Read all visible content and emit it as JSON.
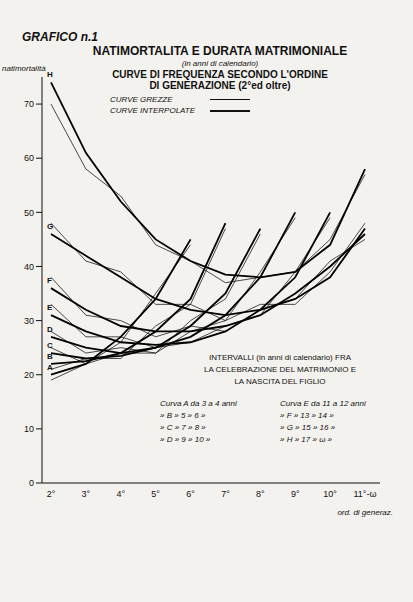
{
  "chart_data": {
    "type": "line",
    "header": "GRAFICO n.1",
    "title": "NATIMORTALITA E DURATA MATRIMONIALE",
    "subtitle": "(in anni di calendario)",
    "subtitle2": [
      "CURVE DI FREQUENZA SECONDO L'ORDINE",
      "DI GENERAZIONE (2°ed oltre)"
    ],
    "legend_labels": {
      "raw": "CURVE GREZZE",
      "interpolated": "CURVE INTERPOLATE"
    },
    "y_label": "natimortalità",
    "x_label": "ord. di generaz.",
    "categories": [
      "2°",
      "3°",
      "4°",
      "5°",
      "6°",
      "7°",
      "8°",
      "9°",
      "10°",
      "11°-ω"
    ],
    "ylim": [
      0,
      75
    ],
    "yticks": [
      0,
      10,
      20,
      30,
      40,
      50,
      60,
      70
    ],
    "grid": false,
    "series": [
      {
        "name": "A",
        "color": "#000000",
        "raw": [
          19,
          22,
          26,
          35,
          44,
          null,
          null,
          null,
          null,
          null
        ],
        "interpolated": [
          20,
          22,
          27,
          34,
          45,
          null,
          null,
          null,
          null,
          null
        ]
      },
      {
        "name": "B",
        "color": "#000000",
        "raw": [
          21,
          23,
          23,
          29,
          33,
          47,
          null,
          null,
          null,
          null
        ],
        "interpolated": [
          22,
          22.5,
          24,
          28,
          34,
          48,
          null,
          null,
          null,
          null
        ]
      },
      {
        "name": "C",
        "color": "#000000",
        "raw": [
          25,
          22,
          24,
          24,
          30,
          34,
          46,
          null,
          null,
          null
        ],
        "interpolated": [
          24,
          23,
          23.5,
          25,
          29,
          35,
          47,
          null,
          null,
          null
        ]
      },
      {
        "name": "D",
        "color": "#000000",
        "raw": [
          28,
          24,
          25,
          24,
          28,
          30,
          39,
          49,
          null,
          null
        ],
        "interpolated": [
          27,
          25,
          24,
          25,
          27,
          31,
          38,
          50,
          null,
          null
        ]
      },
      {
        "name": "E",
        "color": "#000000",
        "raw": [
          33,
          27,
          27,
          25,
          26,
          29,
          31,
          39,
          49,
          null
        ],
        "interpolated": [
          31,
          28,
          26,
          25.5,
          26,
          28,
          32,
          38,
          50,
          null
        ]
      },
      {
        "name": "F",
        "color": "#000000",
        "raw": [
          38,
          31,
          30,
          27,
          29,
          28,
          32,
          34,
          41,
          45
        ],
        "interpolated": [
          36,
          32,
          29,
          28,
          28,
          29,
          31,
          35,
          40,
          46
        ]
      },
      {
        "name": "G",
        "color": "#000000",
        "raw": [
          48,
          41,
          39,
          33,
          33,
          30,
          33,
          33,
          39,
          48
        ],
        "interpolated": [
          46,
          42,
          38,
          34,
          32,
          31,
          32,
          34,
          38,
          47
        ]
      },
      {
        "name": "H",
        "color": "#000000",
        "raw": [
          70,
          58,
          53,
          44,
          41,
          37,
          38,
          39,
          45,
          57
        ],
        "interpolated": [
          74,
          61,
          52,
          45,
          41,
          38.5,
          38,
          39,
          44,
          58
        ]
      }
    ],
    "annotation": {
      "title": [
        "INTERVALLI (in anni di calendario) FRA",
        "LA CELEBRAZIONE DEL MATRIMONIO E",
        "LA NASCITA DEL FIGLIO"
      ],
      "left_rows": [
        "Curva A da 3 a 4 anni",
        "» B » 5 » 6 »",
        "» C » 7 » 8 »",
        "» D » 9 » 10 »"
      ],
      "right_rows": [
        "Curva E da 11 a 12 anni",
        "» F » 13 » 14 »",
        "» G » 15 » 16 »",
        "» H » 17 » ω »"
      ]
    }
  }
}
